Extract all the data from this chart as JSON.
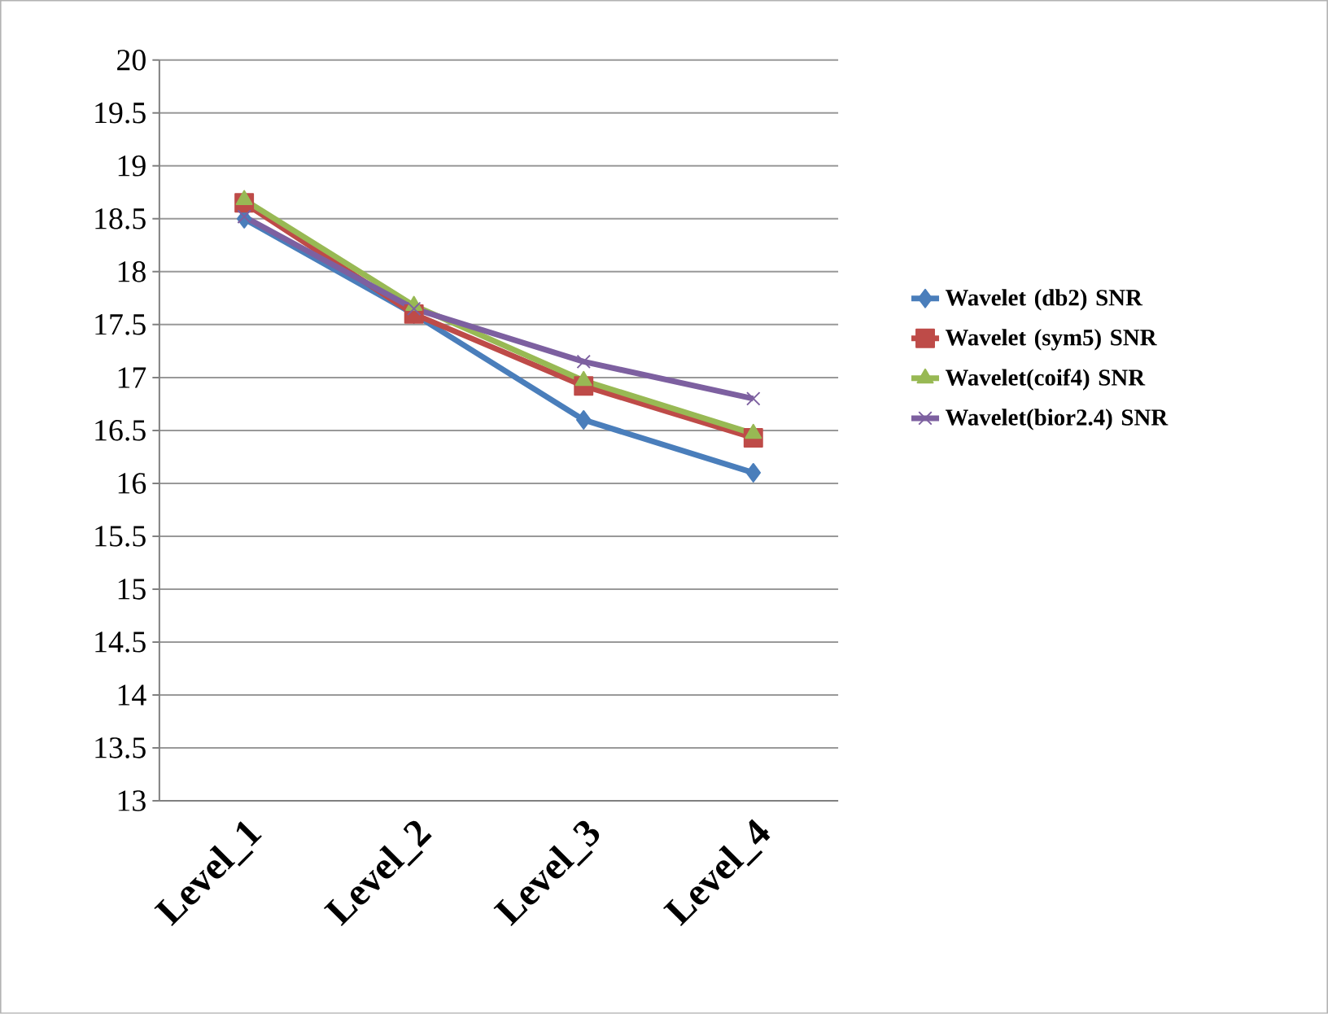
{
  "chart_data": {
    "type": "line",
    "categories": [
      "Level_1",
      "Level_2",
      "Level_3",
      "Level_4"
    ],
    "series": [
      {
        "name": "Wavelet (db2) SNR",
        "color": "#4a7ebb",
        "marker": "diamond",
        "values": [
          18.5,
          17.6,
          16.6,
          16.1
        ]
      },
      {
        "name": "Wavelet (sym5) SNR",
        "color": "#be4b48",
        "marker": "square",
        "values": [
          18.65,
          17.6,
          16.92,
          16.43
        ]
      },
      {
        "name": "Wavelet(coif4) SNR",
        "color": "#98b954",
        "marker": "triangle",
        "values": [
          18.68,
          17.68,
          16.97,
          16.47
        ]
      },
      {
        "name": "Wavelet(bior2.4) SNR",
        "color": "#7d60a0",
        "marker": "cross",
        "values": [
          18.52,
          17.65,
          17.15,
          16.8
        ]
      }
    ],
    "ylim": [
      13,
      20
    ],
    "yticks": [
      13,
      13.5,
      14,
      14.5,
      15,
      15.5,
      16,
      16.5,
      17,
      17.5,
      18,
      18.5,
      19,
      19.5,
      20
    ],
    "grid": "y",
    "legend": "right",
    "line_style": "solid"
  }
}
